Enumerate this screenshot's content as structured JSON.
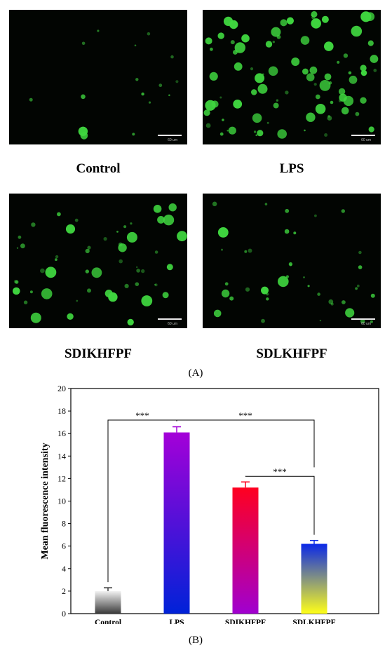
{
  "panels": [
    {
      "caption": "Control",
      "scale_bar": "60 um",
      "cell_density": "low"
    },
    {
      "caption": "LPS",
      "scale_bar": "60 um",
      "cell_density": "high"
    },
    {
      "caption": "SDIKHFPF",
      "scale_bar": "60 um",
      "cell_density": "medium"
    },
    {
      "caption": "SDLKHFPF",
      "scale_bar": "60 um",
      "cell_density": "medium-low"
    }
  ],
  "label_a": "(A)",
  "label_b": "(B)",
  "colors": {
    "fluorescence": "#3fd63f",
    "background": "#020502"
  },
  "chart_data": {
    "type": "bar",
    "title": "",
    "xlabel": "",
    "ylabel": "Mean fluorescence intensity",
    "categories": [
      "Control",
      "LPS",
      "SDIKHFPF",
      "SDLKHFPF"
    ],
    "values": [
      2.0,
      16.1,
      11.2,
      6.2
    ],
    "errors": [
      0.3,
      0.5,
      0.5,
      0.3
    ],
    "ylim": [
      0,
      20
    ],
    "yticks": [
      "0",
      "2",
      "4",
      "6",
      "8",
      "10",
      "12",
      "14",
      "16",
      "18",
      "20"
    ],
    "bar_gradients": [
      [
        "#f2f2f2",
        "#3a3a3a"
      ],
      [
        "#a400d8",
        "#0022d8"
      ],
      [
        "#ff0020",
        "#a000d0"
      ],
      [
        "#0a28e8",
        "#ffff18"
      ]
    ],
    "error_colors": [
      "#3a3a3a",
      "#a400d8",
      "#ff0020",
      "#0a28e8"
    ],
    "significance": [
      {
        "from": 0,
        "to": 1,
        "label": "***"
      },
      {
        "from": 1,
        "to": 3,
        "label": "***"
      },
      {
        "from": 2,
        "to": 3,
        "label": "***"
      }
    ],
    "grid": false
  }
}
